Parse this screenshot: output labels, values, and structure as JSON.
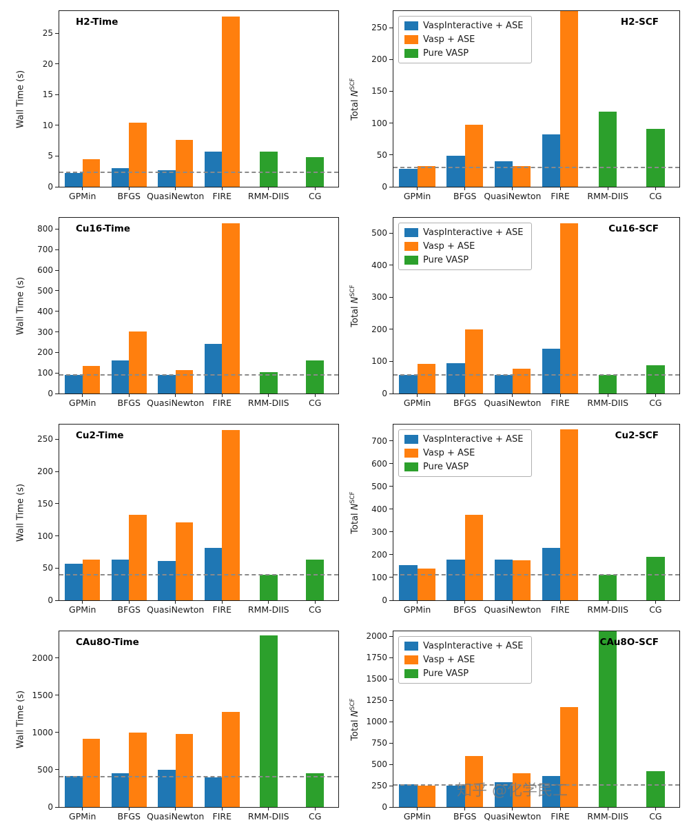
{
  "watermark": "知乎 @化学民工",
  "colors": {
    "series": [
      "#1f77b4",
      "#ff7f0e",
      "#2ca02c"
    ],
    "baseline": "#8a8a8a",
    "axis": "#1a1a1a"
  },
  "series_names": [
    "VaspInteractive + ASE",
    "Vasp + ASE",
    "Pure VASP"
  ],
  "categories": [
    "GPMin",
    "BFGS",
    "QuasiNewton",
    "FIRE",
    "RMM-DIIS",
    "CG"
  ],
  "chart_data": [
    {
      "type": "bar",
      "title": "H2-Time",
      "title_pos": "left",
      "legend": false,
      "ylabel": {
        "text": "Wall Time (s)"
      },
      "categories": [
        "GPMin",
        "BFGS",
        "QuasiNewton",
        "FIRE",
        "RMM-DIIS",
        "CG"
      ],
      "ylim": [
        0,
        28.6
      ],
      "yticks": [
        0,
        5,
        10,
        15,
        20,
        25
      ],
      "baseline": 2.3,
      "series": [
        {
          "name": "VaspInteractive + ASE",
          "values": [
            2.2,
            3.0,
            2.7,
            5.7,
            null,
            null
          ]
        },
        {
          "name": "Vasp + ASE",
          "values": [
            4.5,
            10.4,
            7.6,
            27.7,
            null,
            null
          ]
        },
        {
          "name": "Pure VASP",
          "values": [
            null,
            null,
            null,
            null,
            5.7,
            4.8
          ]
        }
      ]
    },
    {
      "type": "bar",
      "title": "H2-SCF",
      "title_pos": "right",
      "legend": true,
      "ylabel": {
        "text": "Total ",
        "var": "N",
        "sup": "SCF"
      },
      "categories": [
        "GPMin",
        "BFGS",
        "QuasiNewton",
        "FIRE",
        "RMM-DIIS",
        "CG"
      ],
      "ylim": [
        0,
        276
      ],
      "yticks": [
        0,
        50,
        100,
        150,
        200,
        250
      ],
      "baseline": 30,
      "series": [
        {
          "name": "VaspInteractive + ASE",
          "values": [
            28,
            49,
            40,
            82,
            null,
            null
          ]
        },
        {
          "name": "Vasp + ASE",
          "values": [
            32,
            97,
            33,
            278,
            null,
            null
          ]
        },
        {
          "name": "Pure VASP",
          "values": [
            null,
            null,
            null,
            null,
            118,
            91
          ]
        }
      ]
    },
    {
      "type": "bar",
      "title": "Cu16-Time",
      "title_pos": "left",
      "legend": false,
      "ylabel": {
        "text": "Wall Time (s)"
      },
      "categories": [
        "GPMin",
        "BFGS",
        "QuasiNewton",
        "FIRE",
        "RMM-DIIS",
        "CG"
      ],
      "ylim": [
        0,
        855
      ],
      "yticks": [
        0,
        100,
        200,
        300,
        400,
        500,
        600,
        700,
        800
      ],
      "baseline": 90,
      "series": [
        {
          "name": "VaspInteractive + ASE",
          "values": [
            90,
            160,
            92,
            240,
            null,
            null
          ]
        },
        {
          "name": "Vasp + ASE",
          "values": [
            135,
            303,
            115,
            828,
            null,
            null
          ]
        },
        {
          "name": "Pure VASP",
          "values": [
            null,
            null,
            null,
            null,
            105,
            160
          ]
        }
      ]
    },
    {
      "type": "bar",
      "title": "Cu16-SCF",
      "title_pos": "right",
      "legend": true,
      "ylabel": {
        "text": "Total ",
        "var": "N",
        "sup": "SCF"
      },
      "categories": [
        "GPMin",
        "BFGS",
        "QuasiNewton",
        "FIRE",
        "RMM-DIIS",
        "CG"
      ],
      "ylim": [
        0,
        548
      ],
      "yticks": [
        0,
        100,
        200,
        300,
        400,
        500
      ],
      "baseline": 57,
      "series": [
        {
          "name": "VaspInteractive + ASE",
          "values": [
            57,
            95,
            57,
            140,
            null,
            null
          ]
        },
        {
          "name": "Vasp + ASE",
          "values": [
            93,
            200,
            78,
            530,
            null,
            null
          ]
        },
        {
          "name": "Pure VASP",
          "values": [
            null,
            null,
            null,
            null,
            57,
            88
          ]
        }
      ]
    },
    {
      "type": "bar",
      "title": "Cu2-Time",
      "title_pos": "left",
      "legend": false,
      "ylabel": {
        "text": "Wall Time (s)"
      },
      "categories": [
        "GPMin",
        "BFGS",
        "QuasiNewton",
        "FIRE",
        "RMM-DIIS",
        "CG"
      ],
      "ylim": [
        0,
        273
      ],
      "yticks": [
        0,
        50,
        100,
        150,
        200,
        250
      ],
      "baseline": 40,
      "series": [
        {
          "name": "VaspInteractive + ASE",
          "values": [
            57,
            63,
            61,
            81,
            null,
            null
          ]
        },
        {
          "name": "Vasp + ASE",
          "values": [
            63,
            133,
            121,
            264,
            null,
            null
          ]
        },
        {
          "name": "Pure VASP",
          "values": [
            null,
            null,
            null,
            null,
            40,
            63
          ]
        }
      ]
    },
    {
      "type": "bar",
      "title": "Cu2-SCF",
      "title_pos": "right",
      "legend": true,
      "ylabel": {
        "text": "Total ",
        "var": "N",
        "sup": "SCF"
      },
      "categories": [
        "GPMin",
        "BFGS",
        "QuasiNewton",
        "FIRE",
        "RMM-DIIS",
        "CG"
      ],
      "ylim": [
        0,
        772
      ],
      "yticks": [
        0,
        100,
        200,
        300,
        400,
        500,
        600,
        700
      ],
      "baseline": 113,
      "series": [
        {
          "name": "VaspInteractive + ASE",
          "values": [
            155,
            180,
            180,
            230,
            null,
            null
          ]
        },
        {
          "name": "Vasp + ASE",
          "values": [
            140,
            375,
            175,
            750,
            null,
            null
          ]
        },
        {
          "name": "Pure VASP",
          "values": [
            null,
            null,
            null,
            null,
            113,
            190
          ]
        }
      ]
    },
    {
      "type": "bar",
      "title": "CAu8O-Time",
      "title_pos": "left",
      "legend": false,
      "ylabel": {
        "text": "Wall Time (s)"
      },
      "categories": [
        "GPMin",
        "BFGS",
        "QuasiNewton",
        "FIRE",
        "RMM-DIIS",
        "CG"
      ],
      "ylim": [
        0,
        2360
      ],
      "yticks": [
        0,
        500,
        1000,
        1500,
        2000
      ],
      "baseline": 410,
      "series": [
        {
          "name": "VaspInteractive + ASE",
          "values": [
            420,
            450,
            500,
            400,
            null,
            null
          ]
        },
        {
          "name": "Vasp + ASE",
          "values": [
            920,
            1000,
            980,
            1280,
            null,
            null
          ]
        },
        {
          "name": "Pure VASP",
          "values": [
            null,
            null,
            null,
            null,
            2300,
            450
          ]
        }
      ]
    },
    {
      "type": "bar",
      "title": "CAu8O-SCF",
      "title_pos": "right",
      "legend": true,
      "ylabel": {
        "text": "Total ",
        "var": "N",
        "sup": "SCF"
      },
      "categories": [
        "GPMin",
        "BFGS",
        "QuasiNewton",
        "FIRE",
        "RMM-DIIS",
        "CG"
      ],
      "ylim": [
        0,
        2060
      ],
      "yticks": [
        0,
        250,
        500,
        750,
        1000,
        1250,
        1500,
        1750,
        2000
      ],
      "baseline": 260,
      "series": [
        {
          "name": "VaspInteractive + ASE",
          "values": [
            270,
            250,
            290,
            360,
            null,
            null
          ]
        },
        {
          "name": "Vasp + ASE",
          "values": [
            250,
            600,
            400,
            1170,
            null,
            null
          ]
        },
        {
          "name": "Pure VASP",
          "values": [
            null,
            null,
            null,
            null,
            2200,
            420
          ]
        }
      ]
    }
  ]
}
